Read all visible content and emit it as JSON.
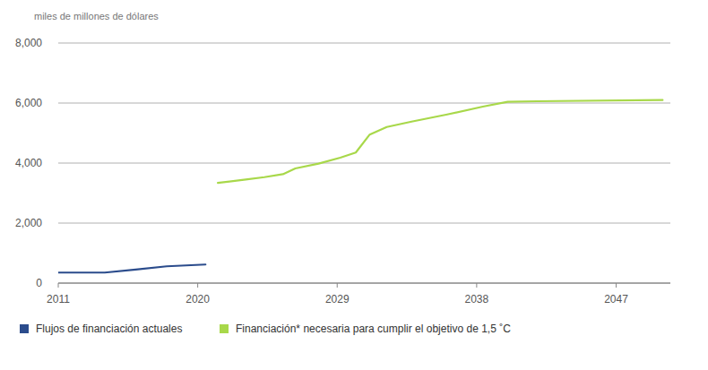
{
  "chart_data": {
    "type": "line",
    "y_label": "miles de millones de dólares",
    "xlim": [
      2011,
      2050.5
    ],
    "xticks": [
      2011,
      2020,
      2029,
      2038,
      2047
    ],
    "ylim": [
      0,
      8000
    ],
    "yticks": [
      0,
      {
        "value": 2000,
        "label": "2,000"
      },
      {
        "value": 4000,
        "label": "4,000"
      },
      {
        "value": 6000,
        "label": "6,000"
      },
      {
        "value": 8000,
        "label": "8,000"
      }
    ],
    "grid": true,
    "legend": "bottom",
    "series": [
      {
        "name": "Flujos de financiación actuales",
        "color": "#2b4c8c",
        "x": [
          2011,
          2014,
          2016,
          2018,
          2020.5
        ],
        "values": [
          350,
          350,
          450,
          560,
          620
        ]
      },
      {
        "name": "Financiación* necesaria para cumplir el objetivo de 1,5 ˚C",
        "color": "#a8d84a",
        "x": [
          2021.3,
          2023.1,
          2024.3,
          2025.5,
          2026.3,
          2027.8,
          2029.2,
          2030.2,
          2031.1,
          2032.2,
          2033.8,
          2036.1,
          2038.4,
          2040,
          2041.9,
          2050
        ],
        "values": [
          3340,
          3450,
          3530,
          3630,
          3820,
          3980,
          4180,
          4350,
          4950,
          5200,
          5380,
          5620,
          5880,
          6040,
          6060,
          6100
        ]
      }
    ]
  }
}
